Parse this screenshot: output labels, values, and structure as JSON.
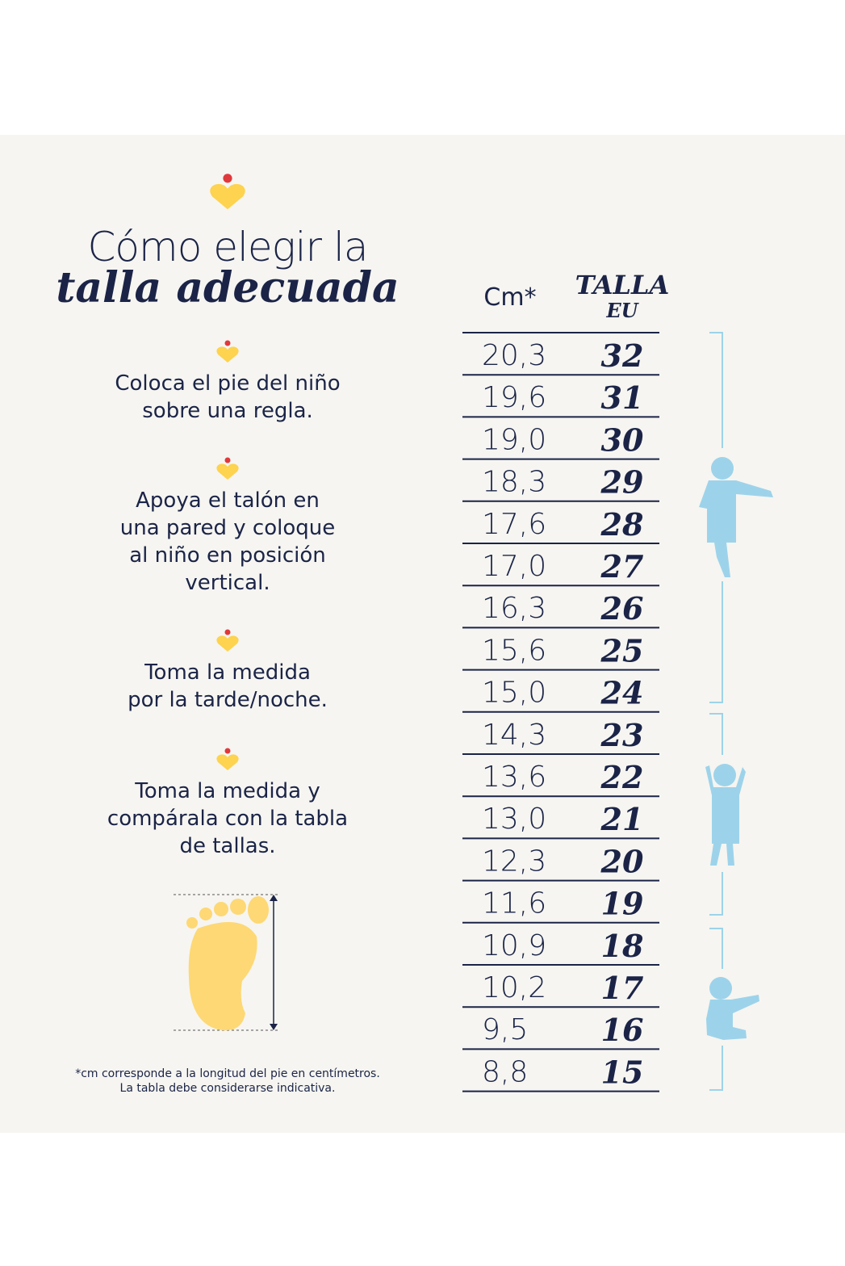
{
  "header": {
    "title_line1": "Cómo elegir la",
    "title_line2": "talla adecuada"
  },
  "steps": [
    {
      "lines": [
        "Coloca el pie del niño",
        "sobre una regla."
      ]
    },
    {
      "lines": [
        "Apoya el talón en",
        "una pared y coloque",
        "al niño en posición",
        "vertical."
      ]
    },
    {
      "lines": [
        "Toma la medida",
        "por la tarde/noche."
      ]
    },
    {
      "lines": [
        "Toma la medida y",
        "compárala con la tabla",
        "de tallas."
      ]
    }
  ],
  "footnote": [
    "*cm corresponde a la longitud del pie en centímetros.",
    "La tabla debe considerarse indicativa."
  ],
  "table": {
    "header": {
      "cm": "Cm*",
      "size_line1": "TALLA",
      "size_line2": "EU"
    },
    "rows": [
      [
        "20,3",
        32
      ],
      [
        "19,6",
        31
      ],
      [
        "19,0",
        30
      ],
      [
        "18,3",
        29
      ],
      [
        "17,6",
        28
      ],
      [
        "17,0",
        27
      ],
      [
        "16,3",
        26
      ],
      [
        "15,6",
        25
      ],
      [
        "15,0",
        24
      ],
      [
        "14,3",
        23
      ],
      [
        "13,6",
        22
      ],
      [
        "13,0",
        21
      ],
      [
        "12,3",
        20
      ],
      [
        "11,6",
        19
      ],
      [
        "10,9",
        18
      ],
      [
        "10,2",
        17
      ],
      [
        "9,5",
        16
      ],
      [
        "8,8",
        15
      ]
    ]
  }
}
